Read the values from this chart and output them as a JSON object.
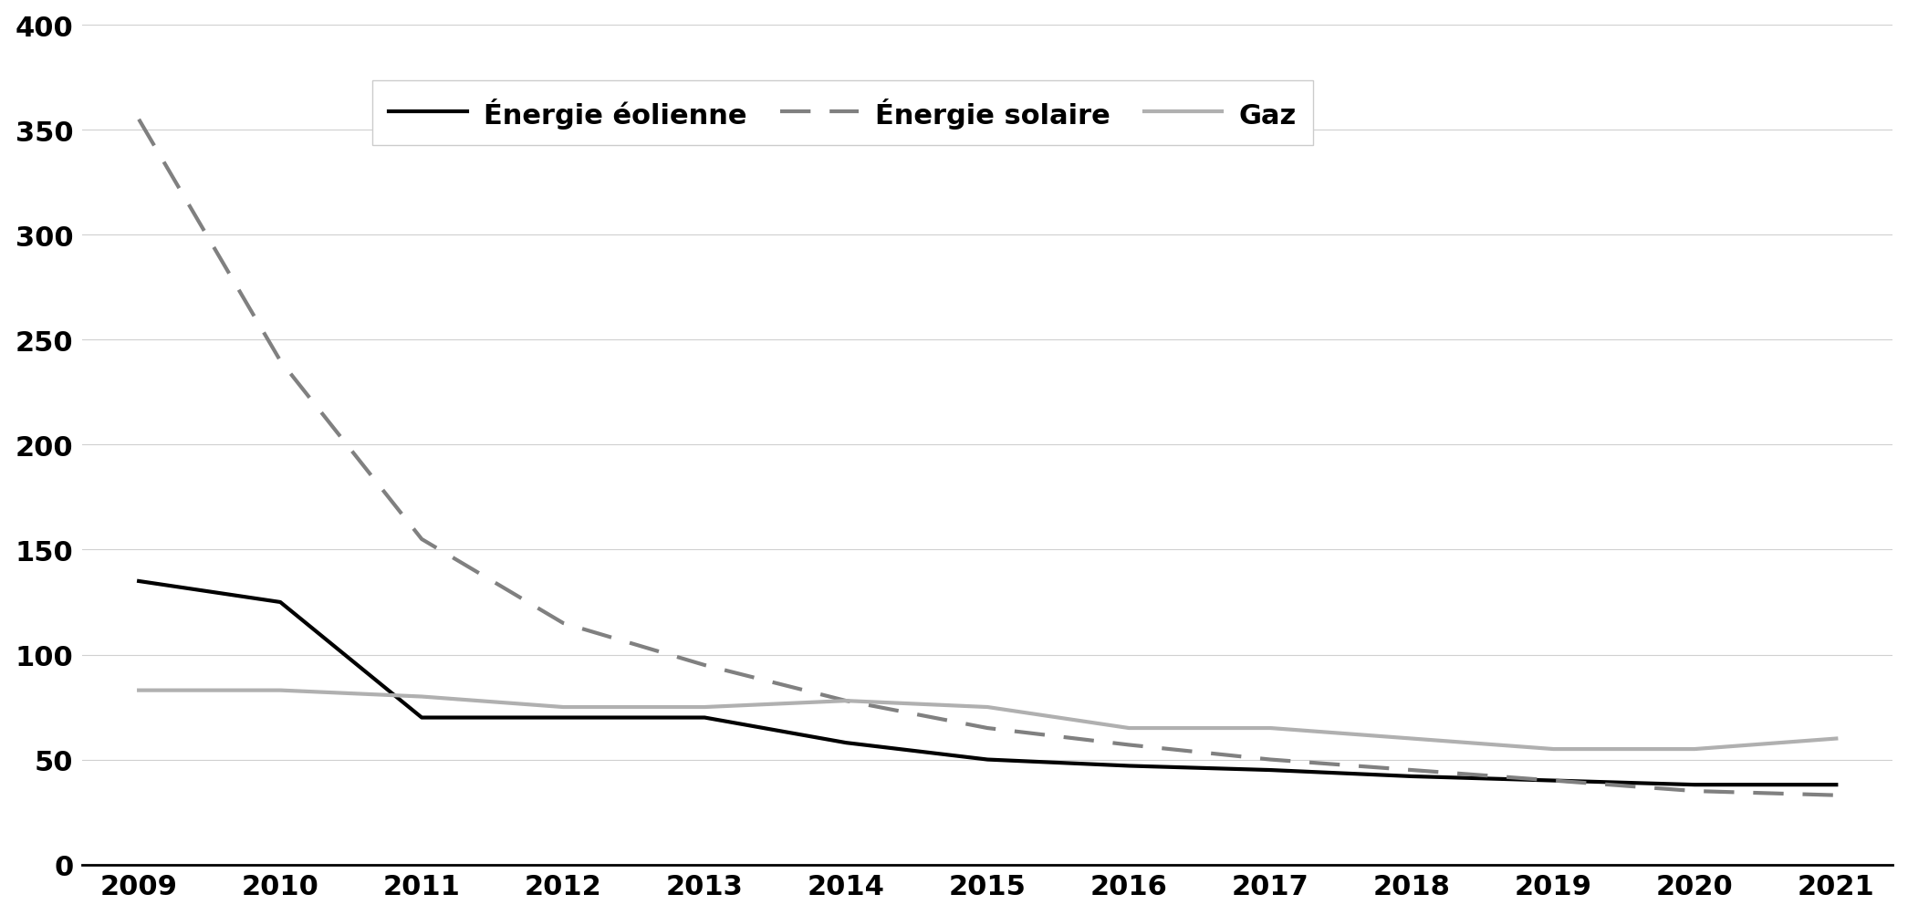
{
  "years": [
    2009,
    2010,
    2011,
    2012,
    2013,
    2014,
    2015,
    2016,
    2017,
    2018,
    2019,
    2020,
    2021
  ],
  "eolienne": [
    135,
    125,
    70,
    70,
    70,
    58,
    50,
    47,
    45,
    42,
    40,
    38,
    38
  ],
  "solaire": [
    355,
    240,
    155,
    115,
    95,
    78,
    65,
    57,
    50,
    45,
    40,
    35,
    33
  ],
  "gaz": [
    83,
    83,
    80,
    75,
    75,
    78,
    75,
    65,
    65,
    60,
    55,
    55,
    60
  ],
  "eolienne_color": "#000000",
  "solaire_color": "#808080",
  "gaz_color": "#b0b0b0",
  "background_color": "#ffffff",
  "ylim": [
    0,
    400
  ],
  "yticks": [
    0,
    50,
    100,
    150,
    200,
    250,
    300,
    350,
    400
  ],
  "legend_labels": [
    "Énergie éolienne",
    "Énergie solaire",
    "Gaz"
  ],
  "grid_color": "#d0d0d0",
  "line_width": 3.0,
  "tick_fontsize": 22,
  "legend_fontsize": 22
}
